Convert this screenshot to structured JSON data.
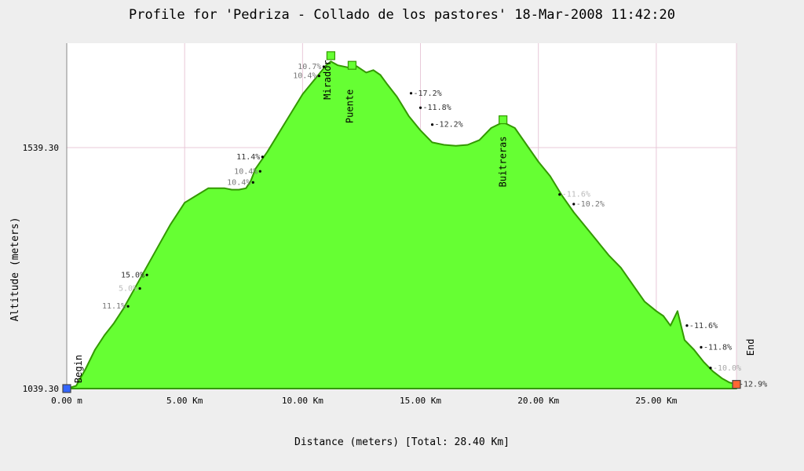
{
  "chart_data": {
    "type": "area",
    "title": "Profile for 'Pedriza - Collado de los pastores' 18-Mar-2008 11:42:20",
    "xlabel": "Distance (meters) [Total: 28.40 Km]",
    "ylabel": "Altitude (meters)",
    "xlim": [
      0,
      28.4
    ],
    "ylim": [
      1039.3,
      1750
    ],
    "x_ticks": [
      {
        "v": 0,
        "label": "0.00 m"
      },
      {
        "v": 5,
        "label": "5.00 Km"
      },
      {
        "v": 10,
        "label": "10.00 Km"
      },
      {
        "v": 15,
        "label": "15.00 Km"
      },
      {
        "v": 20,
        "label": "20.00 Km"
      },
      {
        "v": 25,
        "label": "25.00 Km"
      }
    ],
    "y_ticks": [
      {
        "v": 1039.3,
        "label": "1039.30"
      },
      {
        "v": 1539.3,
        "label": "1539.30"
      }
    ],
    "grid": true,
    "fill_color": "#66ff33",
    "line_color": "#339900",
    "series": [
      {
        "x": [
          0,
          0.4,
          0.8,
          1.2,
          1.6,
          2.0,
          2.4,
          2.8,
          3.2,
          3.6,
          4.0,
          4.4,
          4.8,
          5.0,
          5.5,
          6.0,
          6.3,
          6.7,
          7.0,
          7.3,
          7.6,
          7.8,
          8.0,
          8.5,
          9.0,
          9.5,
          10.0,
          10.5,
          11.0,
          11.2,
          11.5,
          12.0,
          12.3,
          12.7,
          13.0,
          13.3,
          13.6,
          14.0,
          14.5,
          15.0,
          15.5,
          16.0,
          16.5,
          17.0,
          17.5,
          18.0,
          18.5,
          19.0,
          19.5,
          20.0,
          20.5,
          21.0,
          21.5,
          22.0,
          22.5,
          23.0,
          23.5,
          24.0,
          24.5,
          25.0,
          25.3,
          25.6,
          25.9,
          26.2,
          26.6,
          27.0,
          27.4,
          27.8,
          28.1,
          28.4
        ],
        "y": [
          1039.3,
          1045,
          1080,
          1120,
          1150,
          1175,
          1205,
          1240,
          1275,
          1310,
          1345,
          1380,
          1410,
          1425,
          1440,
          1455,
          1455,
          1455,
          1452,
          1452,
          1455,
          1470,
          1495,
          1530,
          1570,
          1610,
          1650,
          1680,
          1710,
          1718,
          1710,
          1705,
          1708,
          1695,
          1700,
          1690,
          1670,
          1645,
          1605,
          1575,
          1550,
          1545,
          1543,
          1545,
          1555,
          1580,
          1592,
          1580,
          1545,
          1510,
          1480,
          1440,
          1405,
          1375,
          1345,
          1315,
          1290,
          1255,
          1220,
          1200,
          1190,
          1170,
          1200,
          1140,
          1120,
          1095,
          1075,
          1060,
          1052,
          1048
        ]
      }
    ],
    "waypoints": [
      {
        "name": "Begin",
        "x": 0,
        "y": 1039.3,
        "marker": "#3366ff",
        "label_x": 0.5,
        "label_y": 1080
      },
      {
        "name": "Mirador",
        "x": 11.2,
        "y": 1730,
        "marker": "#66ff33",
        "label_x": 11.05,
        "label_y": 1680
      },
      {
        "name": "Puente",
        "x": 12.1,
        "y": 1710,
        "marker": "#66ff33",
        "label_x": 12.0,
        "label_y": 1625
      },
      {
        "name": "Buitreras",
        "x": 18.5,
        "y": 1597,
        "marker": "#66ff33",
        "label_x": 18.5,
        "label_y": 1510
      },
      {
        "name": "End",
        "x": 28.4,
        "y": 1048,
        "marker": "#ff6633",
        "label_x": 29.0,
        "label_y": 1125
      }
    ],
    "grade_labels": [
      {
        "text": "11.1%",
        "x": 2.6,
        "y": 1210,
        "color": "#777777"
      },
      {
        "text": "15.0%",
        "x": 3.4,
        "y": 1275,
        "color": "#333333"
      },
      {
        "text": "5.0%",
        "x": 3.1,
        "y": 1247,
        "color": "#bbbbbb"
      },
      {
        "text": "10.4%",
        "x": 7.9,
        "y": 1467,
        "color": "#777777"
      },
      {
        "text": "10.4%",
        "x": 8.2,
        "y": 1490,
        "color": "#777777"
      },
      {
        "text": "11.4%",
        "x": 8.3,
        "y": 1520,
        "color": "#333333"
      },
      {
        "text": "10.7%",
        "x": 10.9,
        "y": 1707,
        "color": "#777777"
      },
      {
        "text": "10.4%",
        "x": 10.7,
        "y": 1688,
        "color": "#777777"
      },
      {
        "text": "-17.2%",
        "x": 14.6,
        "y": 1652,
        "color": "#333333"
      },
      {
        "text": "-11.8%",
        "x": 15.0,
        "y": 1622,
        "color": "#333333"
      },
      {
        "text": "-12.2%",
        "x": 15.5,
        "y": 1587,
        "color": "#333333"
      },
      {
        "text": "-11.6%",
        "x": 20.9,
        "y": 1442,
        "color": "#bbbbbb"
      },
      {
        "text": "-10.2%",
        "x": 21.5,
        "y": 1422,
        "color": "#777777"
      },
      {
        "text": "-11.6%",
        "x": 26.3,
        "y": 1170,
        "color": "#333333"
      },
      {
        "text": "-11.8%",
        "x": 26.9,
        "y": 1125,
        "color": "#333333"
      },
      {
        "text": "-10.0%",
        "x": 27.3,
        "y": 1082,
        "color": "#aaaaaa"
      },
      {
        "text": "-12.9%",
        "x": 28.4,
        "y": 1048,
        "color": "#333333"
      }
    ]
  }
}
